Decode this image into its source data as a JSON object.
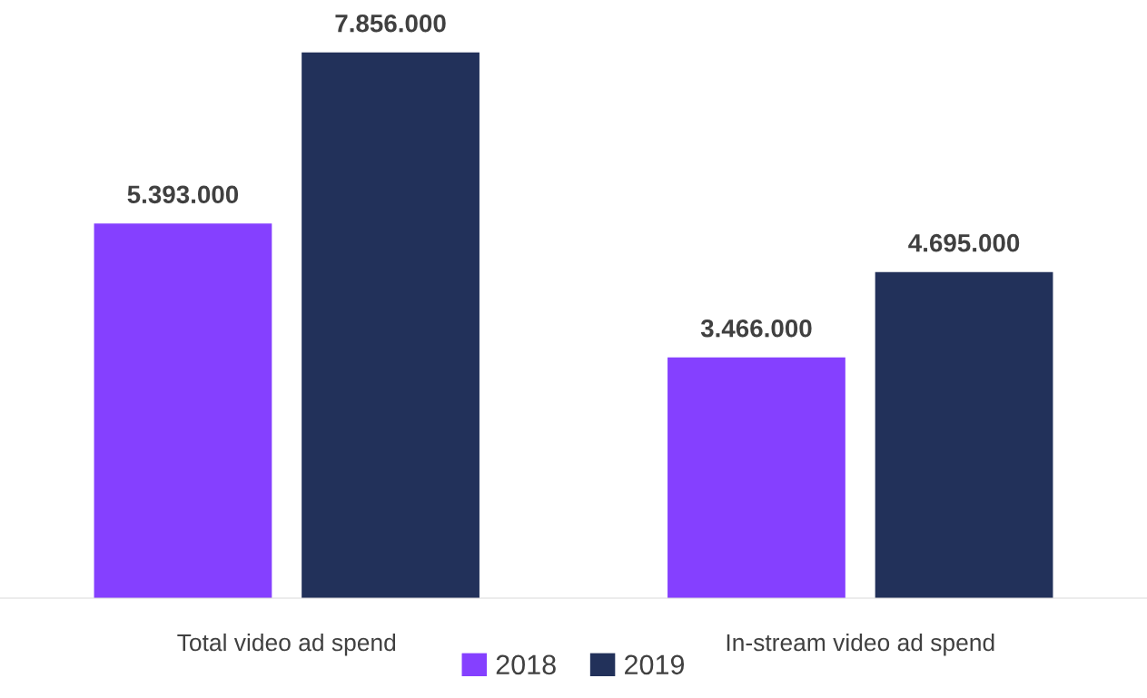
{
  "chart_data": {
    "type": "bar",
    "categories": [
      "Total video ad spend",
      "In-stream video ad spend"
    ],
    "series": [
      {
        "name": "2018",
        "color": "#8540ff",
        "values": [
          5393000,
          3466000
        ],
        "value_labels": [
          "5.393.000",
          "3.466.000"
        ]
      },
      {
        "name": "2019",
        "color": "#22315a",
        "values": [
          7856000,
          4695000
        ],
        "value_labels": [
          "7.856.000",
          "4.695.000"
        ]
      }
    ],
    "legend": "bottom",
    "grid": false
  }
}
